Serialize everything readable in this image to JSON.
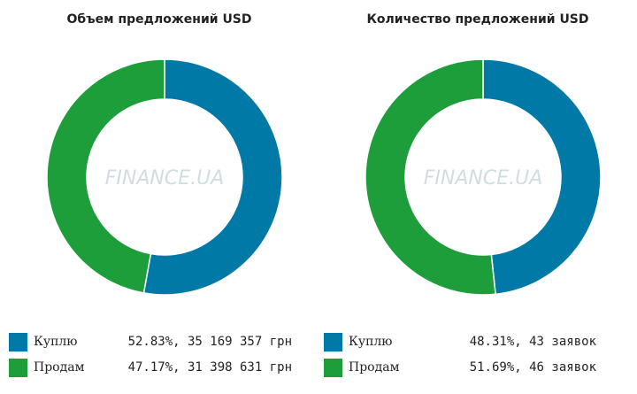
{
  "colors": {
    "buy": "#0079a7",
    "sell": "#1e9e3a"
  },
  "watermark": "FINANCE.UA",
  "chart_data": [
    {
      "type": "pie",
      "title": "Объем предложений USD",
      "categories": [
        "Куплю",
        "Продам"
      ],
      "values": [
        52.83,
        47.17
      ],
      "legend": [
        {
          "label": "Куплю",
          "value_text": "52.83%, 35 169 357 грн"
        },
        {
          "label": "Продам",
          "value_text": "47.17%, 31 398 631 грн"
        }
      ]
    },
    {
      "type": "pie",
      "title": "Количество предложений USD",
      "categories": [
        "Куплю",
        "Продам"
      ],
      "values": [
        48.31,
        51.69
      ],
      "legend": [
        {
          "label": "Куплю",
          "value_text": "48.31%, 43 заявок"
        },
        {
          "label": "Продам",
          "value_text": "51.69%, 46 заявок"
        }
      ]
    }
  ]
}
